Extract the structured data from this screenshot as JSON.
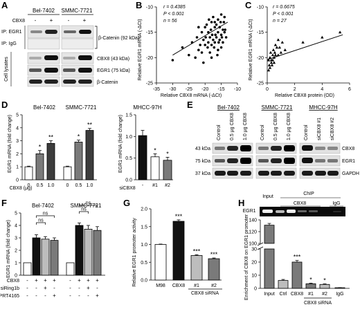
{
  "panels": {
    "A": {
      "letter": "A",
      "cell1": "Bel-7402",
      "cell2": "SMMC-7721",
      "cbx8_label": "CBX8",
      "signs": [
        "-",
        "+",
        "-",
        "+"
      ],
      "ip_egr1": "IP: EGR1",
      "ip_igg": "IP: IgG",
      "lysates": "Cell lysates",
      "bands": [
        "β-Catenin (92 kDa)",
        "CBX8 (43 kDa)",
        "EGR1 (75 kDa)",
        "β-Catenin"
      ]
    },
    "B": {
      "letter": "B",
      "stat_r": "r = 0.4385",
      "stat_p": "P < 0.001",
      "stat_n": "n = 56",
      "ylabel": "Relative EGR1 mRNA (-ΔCt)",
      "xlabel": "Relative CBX8 mRNA (-ΔCt)",
      "xticks": [
        "-35",
        "-30",
        "-25",
        "-20",
        "-15",
        "-10"
      ],
      "yticks": [
        "-25",
        "-20",
        "-15",
        "-10"
      ]
    },
    "C": {
      "letter": "C",
      "stat_r": "r = 0.6675",
      "stat_p": "P < 0.001",
      "stat_n": "n = 27",
      "ylabel": "Relative EGR1 mRNA (-ΔCt)",
      "xlabel": "Relative CBX8 protein (OD)",
      "xticks": [
        "0",
        "2",
        "4",
        "6"
      ],
      "yticks": [
        "-25",
        "-20",
        "-15",
        "-10"
      ]
    },
    "D": {
      "letter": "D",
      "cell1": "Bel-7402",
      "cell2": "SMMC-7721",
      "cell3": "MHCC-97H",
      "ylabel": "EGR1 mRNA (fold change)",
      "xlab_left": "CBX8 (μg)",
      "xlab_right": "siCBX8",
      "dose_ticks": [
        "0",
        "0.5",
        "1.0",
        "0",
        "0.5",
        "1.0"
      ],
      "si_ticks": [
        "-",
        "#1",
        "#2"
      ],
      "yticks_left": [
        "0",
        "1",
        "2",
        "3",
        "4",
        "5"
      ],
      "yticks_right": [
        "0.0",
        "0.5",
        "1.0",
        "1.5"
      ],
      "stars": [
        "*",
        "**",
        "*",
        "**",
        "*",
        "*"
      ]
    },
    "E": {
      "letter": "E",
      "cell1": "Bel-7402",
      "cell2": "SMMC-7721",
      "cell3": "MHCC-97H",
      "lanes": [
        "Control",
        "0.5 μg CBX8",
        "1.0 μg CBX8",
        "Control",
        "0.5 μg CBX8",
        "1.0 μg CBX8",
        "Control",
        "siCBX8 #1",
        "siCBX8 #2"
      ],
      "mw": [
        "43 kDa",
        "75 kDa",
        "37 kDa"
      ],
      "bands": [
        "CBX8",
        "EGR1",
        "GAPDH"
      ]
    },
    "F": {
      "letter": "F",
      "cell1": "Bel-7402",
      "cell2": "SMMC-7721",
      "ylabel": "EGR1 mRNA (fold change)",
      "yticks": [
        "0",
        "1",
        "2",
        "3",
        "4",
        "5"
      ],
      "ns": "ns",
      "row_labels": [
        "CBX8",
        "siRing1b",
        "PRT4165"
      ],
      "row_signs": [
        [
          "-",
          "+",
          "+",
          "+",
          "-",
          "+",
          "+",
          "+"
        ],
        [
          "-",
          "-",
          "+",
          "-",
          "-",
          "-",
          "+",
          "-"
        ],
        [
          "-",
          "-",
          "-",
          "+",
          "-",
          "-",
          "-",
          "+"
        ]
      ]
    },
    "G": {
      "letter": "G",
      "ylabel": "Relative EGR1 promoter activity",
      "yticks": [
        "0.0",
        "0.5",
        "1.0",
        "1.5",
        "2.0"
      ],
      "xticks": [
        "M98",
        "CBX8",
        "#1",
        "#2"
      ],
      "group": "CBX8 siRNA",
      "stars": [
        "***",
        "***",
        "***"
      ]
    },
    "H": {
      "letter": "H",
      "chip": "ChIP",
      "egr1": "EGR1",
      "gel_lanes": [
        "Input",
        "CBX8",
        "IgG"
      ],
      "ylabel": "Enrichment of CBX8 on EGR1 promoter",
      "yticks": [
        "0",
        "10",
        "20",
        "30",
        "100",
        "120",
        "140"
      ],
      "xticks": [
        "Input",
        "Ctrl",
        "CBX8",
        "#1",
        "#2",
        "IgG"
      ],
      "group": "CBX8 siRNA",
      "stars": [
        "***",
        "*",
        "*"
      ]
    }
  },
  "chart_data": [
    {
      "type": "scatter",
      "panel": "B",
      "xlim": [
        -35,
        -10
      ],
      "ylim": [
        -25,
        -10
      ],
      "xlabel": "Relative CBX8 mRNA (-ΔCt)",
      "ylabel": "Relative EGR1 mRNA (-ΔCt)",
      "x": [
        -30,
        -27,
        -25,
        -24,
        -23,
        -22.5,
        -22,
        -21.5,
        -21,
        -21,
        -20.5,
        -20,
        -20,
        -19.8,
        -19.5,
        -19.2,
        -19,
        -19,
        -18.8,
        -18.5,
        -18.5,
        -18.2,
        -18,
        -18,
        -17.8,
        -17.5,
        -17.5,
        -17.2,
        -17,
        -17,
        -16.8,
        -16.5,
        -16.5,
        -16.2,
        -16,
        -16,
        -15.8,
        -15.5,
        -15.5,
        -15.2,
        -15,
        -15,
        -14.8,
        -14.5,
        -14.5,
        -14.2,
        -14,
        -14,
        -13.8,
        -13.5,
        -16,
        -18,
        -20.5,
        -22,
        -17,
        -15
      ],
      "y": [
        -20.5,
        -18,
        -19.5,
        -17,
        -20,
        -16,
        -18.5,
        -17.5,
        -15,
        -19,
        -16.5,
        -14,
        -17.5,
        -16,
        -13.5,
        -18,
        -15,
        -17,
        -12.5,
        -16,
        -19,
        -14.5,
        -17.5,
        -13,
        -15.5,
        -16.5,
        -12,
        -18,
        -14,
        -17,
        -15.5,
        -13.5,
        -16,
        -19.5,
        -12.5,
        -15,
        -17,
        -14,
        -16.5,
        -13,
        -15.5,
        -11.5,
        -16,
        -14.5,
        -17,
        -13,
        -15,
        -12,
        -14.5,
        -16,
        -18.5,
        -20,
        -21,
        -14,
        -13,
        -18
      ]
    },
    {
      "type": "scatter",
      "panel": "C",
      "xlim": [
        0,
        6
      ],
      "ylim": [
        -25,
        -10
      ],
      "xlabel": "Relative CBX8 protein (OD)",
      "ylabel": "Relative EGR1 mRNA (-ΔCt)",
      "x": [
        0.1,
        0.1,
        0.15,
        0.2,
        0.2,
        0.25,
        0.3,
        0.3,
        0.35,
        0.4,
        0.4,
        0.45,
        0.5,
        0.5,
        0.55,
        0.6,
        0.6,
        0.7,
        0.8,
        0.8,
        0.9,
        1.0,
        1.1,
        1.3,
        2.6,
        4.0,
        5.3
      ],
      "y": [
        -22.5,
        -20.5,
        -21.5,
        -20,
        -22,
        -19,
        -21,
        -20.5,
        -21.5,
        -19.5,
        -20.5,
        -18.5,
        -20,
        -21,
        -19,
        -19.5,
        -17.5,
        -18,
        -19.5,
        -16.5,
        -18,
        -19,
        -17,
        -18.5,
        -17,
        -16,
        -15
      ]
    },
    {
      "type": "bar",
      "panel": "D-left",
      "categories": [
        "0",
        "0.5",
        "1.0",
        "0",
        "0.5",
        "1.0"
      ],
      "series": [
        {
          "values": [
            1.0,
            2.0,
            2.8,
            1.0,
            2.9,
            3.8
          ],
          "errors": [
            0.05,
            0.25,
            0.2,
            0.05,
            0.15,
            0.15
          ]
        }
      ],
      "ylim": [
        0,
        5
      ],
      "xlabel": "CBX8 (μg)",
      "ylabel": "EGR1 mRNA (fold change)"
    },
    {
      "type": "bar",
      "panel": "D-right",
      "categories": [
        "-",
        "#1",
        "#2"
      ],
      "series": [
        {
          "values": [
            1.02,
            0.53,
            0.45
          ],
          "errors": [
            0.12,
            0.07,
            0.07
          ]
        }
      ],
      "ylim": [
        0,
        1.5
      ],
      "xlabel": "siCBX8",
      "ylabel": "EGR1 mRNA (fold change)"
    },
    {
      "type": "bar",
      "panel": "F",
      "categories": [
        "1",
        "2",
        "3",
        "4",
        "5",
        "6",
        "7",
        "8"
      ],
      "series": [
        {
          "values": [
            1.0,
            3.0,
            2.9,
            2.8,
            1.0,
            4.0,
            3.7,
            3.6
          ],
          "errors": [
            0.0,
            0.25,
            0.2,
            0.2,
            0.0,
            0.2,
            0.3,
            0.3
          ]
        }
      ],
      "ylim": [
        0,
        5
      ],
      "ylabel": "EGR1 mRNA (fold change)"
    },
    {
      "type": "bar",
      "panel": "G",
      "categories": [
        "M98",
        "CBX8",
        "#1",
        "#2"
      ],
      "series": [
        {
          "values": [
            1.0,
            1.65,
            0.69,
            0.6
          ],
          "errors": [
            0.01,
            0.04,
            0.02,
            0.02
          ]
        }
      ],
      "ylim": [
        0,
        2.0
      ],
      "ylabel": "Relative EGR1 promoter activity"
    },
    {
      "type": "bar",
      "panel": "H",
      "categories": [
        "Input",
        "Ctrl",
        "CBX8",
        "#1",
        "#2",
        "IgG"
      ],
      "series": [
        {
          "values": [
            131,
            6,
            20,
            3.5,
            3,
            0.5
          ],
          "errors": [
            3,
            0.8,
            1.2,
            0.4,
            0.4,
            0.1
          ]
        }
      ],
      "ylim": [
        0,
        140
      ],
      "axis_break": [
        30,
        100
      ],
      "ylabel": "Enrichment of CBX8 on EGR1 promoter"
    }
  ],
  "colors": {
    "white": "#ffffff",
    "light": "#bdbdbd",
    "mid": "#7a7a7a",
    "dark": "#3c3c3c",
    "black": "#111111",
    "blot_bg": "#e4e4e4"
  }
}
